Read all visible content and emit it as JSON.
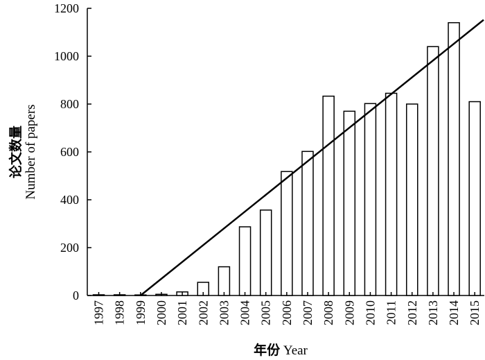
{
  "chart_data": {
    "type": "bar",
    "xlabel_cn": "年份",
    "xlabel_en": "Year",
    "ylabel_cn": "论文数量",
    "ylabel_en": "Number of papers",
    "categories": [
      "1997",
      "1998",
      "1999",
      "2000",
      "2001",
      "2002",
      "2003",
      "2004",
      "2005",
      "2006",
      "2007",
      "2008",
      "2009",
      "2010",
      "2011",
      "2012",
      "2013",
      "2014",
      "2015"
    ],
    "values": [
      3,
      3,
      0,
      5,
      15,
      55,
      120,
      287,
      357,
      518,
      602,
      833,
      770,
      802,
      845,
      800,
      1040,
      1140,
      810
    ],
    "ylim": [
      0,
      1200
    ],
    "yticks": [
      0,
      200,
      400,
      600,
      800,
      1000,
      1200
    ],
    "trendline": {
      "x_start": "1999",
      "y_start": 0,
      "x_end": "2015",
      "y_end": 1122
    },
    "grid": false,
    "legend": "none",
    "bar_fill": "#ffffff",
    "bar_stroke": "#000000"
  }
}
